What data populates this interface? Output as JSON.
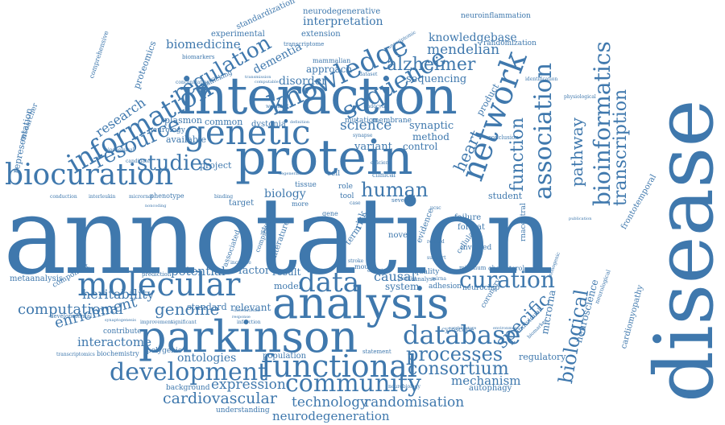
{
  "color": "#3f78ad",
  "words": {
    "annotation": "annotation",
    "disease": "disease",
    "interaction": "interaction",
    "protein": "protein",
    "parkinson": "parkinson",
    "analysis": "analysis",
    "molecular": "molecular",
    "biocuration": "biocuration",
    "genetic": "genetic",
    "knowledge": "knowledge",
    "network": "network",
    "association": "association",
    "bioinformatics": "bioinformatics",
    "information": "information",
    "resource": "resource",
    "sequence": "sequence",
    "regulation": "regulation",
    "functional": "functional",
    "community": "community",
    "development": "development",
    "database": "database",
    "data": "data",
    "curation": "curation",
    "processes": "processes",
    "consortium": "consortium",
    "studies": "studies",
    "human": "human",
    "genome": "genome",
    "enrichment": "enrichment",
    "computational": "computational",
    "cardiovascular": "cardiovascular",
    "technology": "technology",
    "randomisation": "randomisation",
    "neurodegeneration": "neurodegeneration",
    "expression": "expression",
    "alzheimer": "alzheimer",
    "mendelian": "mendelian",
    "science": "science",
    "transcription": "transcription",
    "pathway": "pathway",
    "function": "function",
    "biological": "biological",
    "specific": "specific",
    "heritability": "heritability",
    "interactome": "interactome",
    "ontologies": "ontologies",
    "potential": "potential",
    "mechanism": "mechanism",
    "biomedicine": "biomedicine",
    "interpretation": "interpretation",
    "knowledgebase": "knowledgebase",
    "dementia": "dementia",
    "sequencing": "sequencing",
    "disorder": "disorder",
    "approach": "approach",
    "synaptic": "synaptic",
    "variant": "variant",
    "control": "control",
    "method": "method",
    "causal": "causal",
    "biology": "biology",
    "research": "research",
    "representation": "representation",
    "proteomics": "proteomics",
    "metaanalysis": "metaanalysis",
    "component": "component",
    "standard": "standard",
    "relevant": "relevant",
    "factor": "factor",
    "result": "result",
    "model": "model",
    "system": "system",
    "student": "student",
    "neuroscience": "neuroscience",
    "microrna": "microrna",
    "cardiomyopathy": "cardiomyopathy",
    "frontotemporal": "frontotemporal",
    "autophagy": "autophagy",
    "regulatory": "regulatory",
    "understanding": "understanding",
    "background": "background",
    "population": "population",
    "neurodegenerative": "neurodegenerative",
    "standardization": "standardization",
    "experimental": "experimental",
    "extension": "extension",
    "neuroinflammation": "neuroinflammation",
    "randomization": "randomization",
    "product": "product",
    "heart": "heart",
    "project": "project",
    "available": "available",
    "common": "common",
    "plasmon": "plasmon",
    "dystonia": "dystonia",
    "neurology": "neurology",
    "biomarkers": "biomarkers",
    "transcriptome": "transcriptome",
    "mammalian": "mammalian",
    "trafficking": "trafficking",
    "mutation": "mutation",
    "membrane": "membrane",
    "target": "target",
    "tissue": "tissue",
    "cell": "cell",
    "role": "role",
    "tool": "tool",
    "term": "term",
    "risk": "risk",
    "novel": "novel",
    "failure": "failure",
    "format": "format",
    "involved": "involved",
    "cellular": "cellular",
    "evidence": "evidence",
    "neurochip": "neurochip",
    "adhesion": "adhesion",
    "quality": "quality",
    "coronary": "coronary",
    "cytoscape": "cytoscape",
    "contribute": "contribute",
    "biochemistry": "biochemistry",
    "polygenic": "polygenic",
    "developmental": "developmental",
    "prediction": "prediction",
    "cholesterol": "cholesterol",
    "minimum": "minimum",
    "neurological": "neurological",
    "individual": "individual",
    "clinical": "clinical",
    "several": "several",
    "phenotype": "phenotype",
    "associated": "associated",
    "literature": "literature",
    "complex": "complex",
    "study": "study",
    "mouse": "mouse",
    "statement": "statement",
    "conclusion": "conclusion",
    "identification": "identification",
    "physiological": "physiological",
    "ucsc": "ucsc",
    "support": "support",
    "related": "related",
    "analyse": "analyse",
    "platelet": "platelet",
    "more": "more",
    "synapse": "synapse",
    "dataset": "dataset",
    "endocytic": "endocytic",
    "weighted": "weighted",
    "conduction": "conduction",
    "interleukin": "interleukin",
    "micrornas": "micrornas",
    "candidate": "candidate",
    "biochemical": "biochemical",
    "concentration": "concentration",
    "comprehensive": "comprehensive",
    "researcher": "researcher",
    "transcriptomics": "transcriptomics",
    "improvement": "improvement",
    "significant": "significant",
    "increase": "increase",
    "stroke": "stroke",
    "expert": "expert",
    "infarction": "infarction",
    "architecture": "architecture",
    "environment": "environment",
    "publication": "publication",
    "neurobiology": "neurobiology",
    "noncoding": "noncoding",
    "binding": "binding",
    "case": "case",
    "definition": "definition",
    "response": "response",
    "international": "international",
    "mirna": "mirna",
    "synaptogenesis": "synaptogenesis",
    "computable": "computable",
    "transmission": "transmission",
    "monogenic": "monogenic",
    "biomarker": "biomarker",
    "rnacentral": "rnacentral",
    "gene": "gene",
    "transcriptomic": "transcriptomic",
    "efficient": "efficient",
    "degeneration": "degeneration"
  }
}
